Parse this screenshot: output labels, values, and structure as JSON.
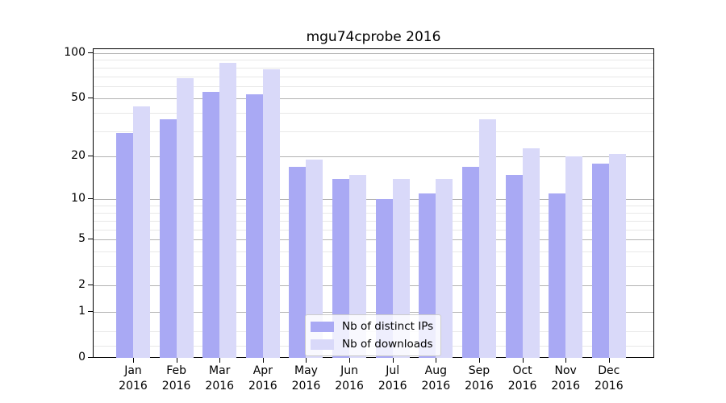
{
  "chart_data": {
    "type": "bar",
    "title": "mgu74cprobe 2016",
    "categories": [
      "Jan",
      "Feb",
      "Mar",
      "Apr",
      "May",
      "Jun",
      "Jul",
      "Aug",
      "Sep",
      "Oct",
      "Nov",
      "Dec"
    ],
    "year": "2016",
    "series": [
      {
        "name": "Nb of distinct IPs",
        "color": "#a9a9f4",
        "values": [
          29,
          36,
          55,
          53,
          17,
          14,
          10,
          11,
          17,
          15,
          11,
          18
        ]
      },
      {
        "name": "Nb of downloads",
        "color": "#d9d9f9",
        "values": [
          44,
          68,
          86,
          78,
          19,
          15,
          14,
          14,
          36,
          23,
          20,
          21
        ]
      }
    ],
    "xlabel": "",
    "ylabel": "",
    "y_scale": "log1p",
    "ylim": [
      0,
      106
    ],
    "y_ticks": [
      0,
      1,
      2,
      5,
      10,
      20,
      50,
      100
    ],
    "y_minor_gridlines": [
      0.2,
      0.5,
      3,
      4,
      6,
      7,
      8,
      9,
      30,
      40,
      60,
      70,
      80,
      90
    ],
    "grid": "horizontal",
    "legend_position": "lower center inside",
    "colors": {
      "major_grid": "#b3b3b3",
      "minor_grid": "#e8e8e8",
      "axis": "#000000",
      "text": "#000000",
      "background": "#ffffff"
    }
  }
}
